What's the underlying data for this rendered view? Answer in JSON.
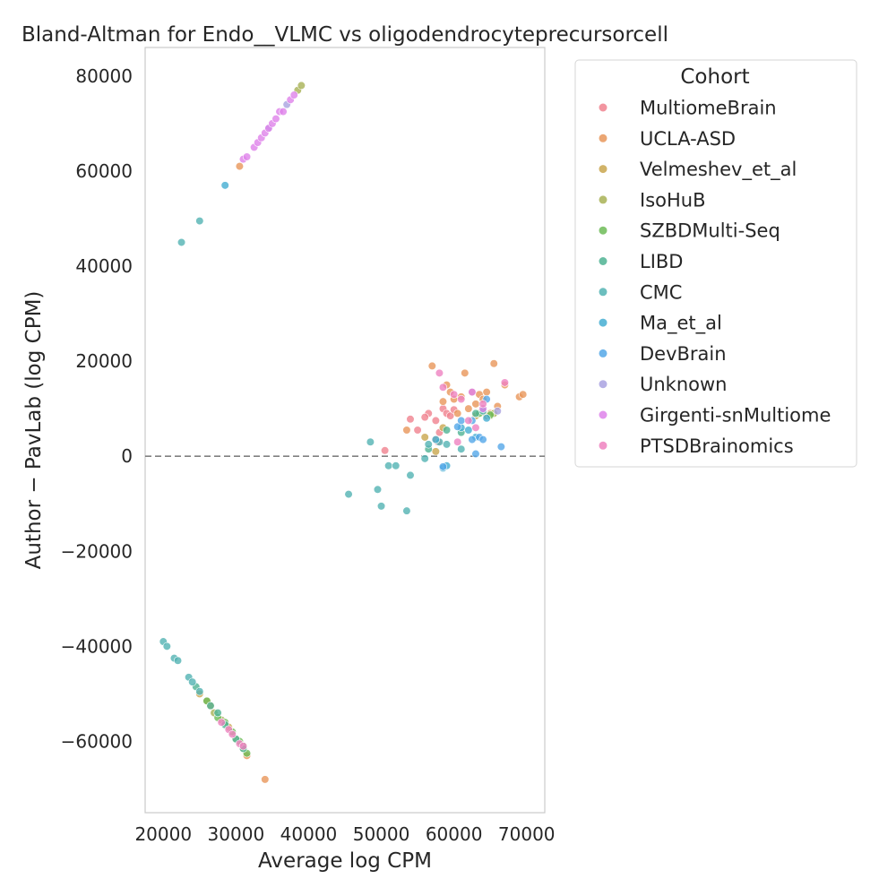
{
  "chart_data": {
    "type": "scatter",
    "title": "Bland-Altman for Endo__VLMC vs oligodendrocyteprecursorcell",
    "xlabel": "Average log CPM",
    "ylabel": "Author − PavLab (log CPM)",
    "xlim": [
      17500,
      72500
    ],
    "ylim": [
      -75000,
      86000
    ],
    "xticks": [
      20000,
      30000,
      40000,
      50000,
      60000,
      70000
    ],
    "yticks": [
      -60000,
      -40000,
      -20000,
      0,
      20000,
      40000,
      60000,
      80000
    ],
    "reference_line": {
      "y": 0,
      "style": "dashed"
    },
    "grid": false,
    "legend": {
      "title": "Cohort",
      "placement": "outside-right"
    },
    "series": [
      {
        "name": "MultiomeBrain",
        "color": "#f0828f",
        "points": [
          [
            50500,
            1200
          ],
          [
            54000,
            7800
          ],
          [
            55000,
            5500
          ],
          [
            56500,
            9000
          ],
          [
            57500,
            7500
          ],
          [
            57800,
            3000
          ],
          [
            58000,
            5000
          ],
          [
            58500,
            10000
          ],
          [
            59000,
            9000
          ],
          [
            59500,
            8500
          ],
          [
            60000,
            9800
          ],
          [
            56000,
            8200
          ]
        ]
      },
      {
        "name": "UCLA-ASD",
        "color": "#e8965a",
        "points": [
          [
            30500,
            61000
          ],
          [
            31500,
            -63000
          ],
          [
            34000,
            -68000
          ],
          [
            53500,
            5500
          ],
          [
            57000,
            19000
          ],
          [
            57500,
            3500
          ],
          [
            58500,
            11500
          ],
          [
            59000,
            15000
          ],
          [
            59500,
            13500
          ],
          [
            60000,
            12000
          ],
          [
            60500,
            9000
          ],
          [
            61000,
            12500
          ],
          [
            61500,
            17500
          ],
          [
            62000,
            10000
          ],
          [
            62500,
            13500
          ],
          [
            63000,
            11000
          ],
          [
            63500,
            13000
          ],
          [
            64000,
            12000
          ],
          [
            64500,
            13500
          ],
          [
            65000,
            9000
          ],
          [
            65500,
            19500
          ],
          [
            66000,
            10500
          ],
          [
            67000,
            15000
          ],
          [
            69000,
            12500
          ],
          [
            69500,
            13000
          ]
        ]
      },
      {
        "name": "Velmeshev_et_al",
        "color": "#c9a64e",
        "points": [
          [
            25000,
            -50000
          ],
          [
            26000,
            -51500
          ],
          [
            26500,
            -52500
          ],
          [
            29000,
            -57000
          ],
          [
            56000,
            4000
          ],
          [
            57500,
            1000
          ],
          [
            58500,
            6000
          ],
          [
            63000,
            8500
          ],
          [
            64000,
            10000
          ],
          [
            64500,
            8500
          ]
        ]
      },
      {
        "name": "IsoHuB",
        "color": "#a8b255",
        "points": [
          [
            38500,
            77000
          ],
          [
            39000,
            78000
          ],
          [
            27000,
            -54000
          ],
          [
            28000,
            -55500
          ],
          [
            30000,
            -59500
          ],
          [
            31000,
            -61500
          ],
          [
            65000,
            8500
          ],
          [
            65500,
            9000
          ]
        ]
      },
      {
        "name": "SZBDMulti-Seq",
        "color": "#6dbb57",
        "points": [
          [
            27500,
            -55000
          ],
          [
            28500,
            -56000
          ],
          [
            29500,
            -58000
          ],
          [
            30500,
            -60000
          ],
          [
            31000,
            -61000
          ],
          [
            31500,
            -62500
          ],
          [
            26000,
            -51500
          ],
          [
            63500,
            9000
          ],
          [
            65000,
            8700
          ]
        ]
      },
      {
        "name": "LIBD",
        "color": "#4fb393",
        "points": [
          [
            24500,
            -48500
          ],
          [
            26500,
            -52500
          ],
          [
            27500,
            -54000
          ],
          [
            28500,
            -56500
          ],
          [
            30000,
            -59500
          ],
          [
            31000,
            -61500
          ],
          [
            56500,
            1500
          ],
          [
            59000,
            5500
          ],
          [
            61000,
            5000
          ],
          [
            63000,
            9000
          ]
        ]
      },
      {
        "name": "CMC",
        "color": "#52b3b3",
        "points": [
          [
            22500,
            45000
          ],
          [
            25000,
            49500
          ],
          [
            20000,
            -39000
          ],
          [
            20500,
            -40000
          ],
          [
            21500,
            -42500
          ],
          [
            22000,
            -43000
          ],
          [
            23500,
            -46500
          ],
          [
            24000,
            -47500
          ],
          [
            25000,
            -49500
          ],
          [
            45500,
            -8000
          ],
          [
            48500,
            3000
          ],
          [
            49500,
            -7000
          ],
          [
            50000,
            -10500
          ],
          [
            51000,
            -2000
          ],
          [
            52000,
            -2000
          ],
          [
            53500,
            -11500
          ],
          [
            54000,
            -4000
          ],
          [
            56000,
            -500
          ],
          [
            56500,
            2500
          ],
          [
            58000,
            3000
          ],
          [
            59000,
            2500
          ],
          [
            61000,
            1500
          ],
          [
            64000,
            9500
          ]
        ]
      },
      {
        "name": "Ma_et_al",
        "color": "#45aed2",
        "points": [
          [
            28500,
            57000
          ],
          [
            57500,
            3500
          ],
          [
            58500,
            -2500
          ],
          [
            59000,
            -2000
          ],
          [
            61000,
            6000
          ],
          [
            62000,
            5500
          ],
          [
            63000,
            4000
          ],
          [
            64500,
            8000
          ]
        ]
      },
      {
        "name": "DevBrain",
        "color": "#55a8e8",
        "points": [
          [
            58500,
            -2200
          ],
          [
            60500,
            6200
          ],
          [
            61000,
            7500
          ],
          [
            62500,
            3500
          ],
          [
            62500,
            7500
          ],
          [
            63000,
            500
          ],
          [
            63500,
            4000
          ],
          [
            64000,
            3500
          ],
          [
            64500,
            12000
          ],
          [
            66500,
            2000
          ]
        ]
      },
      {
        "name": "Unknown",
        "color": "#a9a2e0",
        "points": [
          [
            37000,
            74000
          ],
          [
            34500,
            69000
          ],
          [
            66000,
            9500
          ]
        ]
      },
      {
        "name": "Girgenti-snMultiome",
        "color": "#de82ea",
        "points": [
          [
            31000,
            62500
          ],
          [
            31500,
            63000
          ],
          [
            32500,
            65000
          ],
          [
            33000,
            66000
          ],
          [
            33500,
            67000
          ],
          [
            34000,
            68000
          ],
          [
            34500,
            69000
          ],
          [
            35000,
            70000
          ],
          [
            35500,
            71000
          ],
          [
            36000,
            72500
          ],
          [
            36500,
            72500
          ],
          [
            37500,
            75000
          ],
          [
            38000,
            76000
          ],
          [
            62500,
            13500
          ],
          [
            64000,
            10000
          ]
        ]
      },
      {
        "name": "PTSDBrainomics",
        "color": "#ee82c0",
        "points": [
          [
            28000,
            -56000
          ],
          [
            29000,
            -57500
          ],
          [
            29500,
            -58500
          ],
          [
            30500,
            -60500
          ],
          [
            31000,
            -61000
          ],
          [
            58000,
            17500
          ],
          [
            58500,
            14500
          ],
          [
            60000,
            13000
          ],
          [
            61000,
            12000
          ],
          [
            62000,
            7500
          ],
          [
            63000,
            6000
          ],
          [
            64000,
            11000
          ],
          [
            67000,
            15500
          ],
          [
            60500,
            3000
          ]
        ]
      }
    ]
  }
}
